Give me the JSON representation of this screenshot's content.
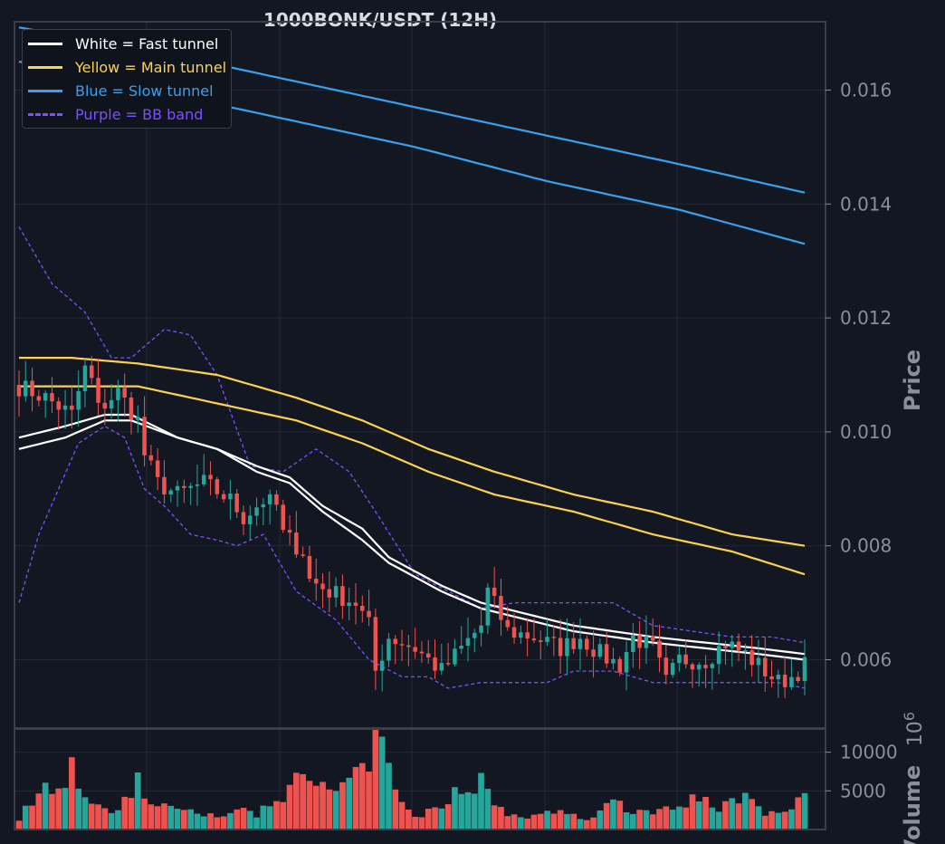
{
  "chart_data": {
    "type": "candlestick",
    "title": "1000BONK/USDT (12H)",
    "price_axis": {
      "label": "Price",
      "ylim": [
        0.0048,
        0.0172
      ],
      "ticks": [
        0.006,
        0.008,
        0.01,
        0.012,
        0.014,
        0.016
      ],
      "tick_labels": [
        "0.006",
        "0.008",
        "0.010",
        "0.012",
        "0.014",
        "0.016"
      ]
    },
    "volume_axis": {
      "label": "Volume",
      "scale_label": "10^6",
      "ylim": [
        0,
        13000
      ],
      "ticks": [
        5000,
        10000
      ],
      "tick_labels": [
        "5000",
        "10000"
      ]
    },
    "grid": true,
    "legend": {
      "placement": "top-left",
      "entries": [
        {
          "label": "White = Fast tunnel",
          "color": "#ffffff",
          "style": "solid"
        },
        {
          "label": "Yellow = Main tunnel",
          "color": "#ffd24d",
          "style": "solid"
        },
        {
          "label": "Blue = Slow tunnel",
          "color": "#3aa0f0",
          "style": "solid"
        },
        {
          "label": "Purple = BB band",
          "color": "#7e4fff",
          "style": "dashed"
        }
      ]
    },
    "colors": {
      "up": "#26a69a",
      "down": "#ef5350",
      "background": "#131722",
      "grid": "#232837",
      "text": "#8a8f9c"
    },
    "candles": {
      "count": 120,
      "close_anchors": [
        [
          0,
          0.0108
        ],
        [
          4,
          0.0106
        ],
        [
          8,
          0.0103
        ],
        [
          10,
          0.0111
        ],
        [
          11,
          0.0109
        ],
        [
          12,
          0.0104
        ],
        [
          15,
          0.0107
        ],
        [
          18,
          0.0102
        ],
        [
          19,
          0.0096
        ],
        [
          21,
          0.0091
        ],
        [
          24,
          0.0089
        ],
        [
          28,
          0.0091
        ],
        [
          32,
          0.0088
        ],
        [
          34,
          0.0085
        ],
        [
          37,
          0.0088
        ],
        [
          39,
          0.0087
        ],
        [
          40,
          0.0082
        ],
        [
          43,
          0.0079
        ],
        [
          44,
          0.0074
        ],
        [
          47,
          0.0072
        ],
        [
          51,
          0.007
        ],
        [
          53,
          0.0066
        ],
        [
          54,
          0.0058
        ],
        [
          56,
          0.0064
        ],
        [
          60,
          0.0062
        ],
        [
          64,
          0.0058
        ],
        [
          67,
          0.0062
        ],
        [
          70,
          0.0066
        ],
        [
          71,
          0.0072
        ],
        [
          74,
          0.0065
        ],
        [
          78,
          0.0064
        ],
        [
          82,
          0.0062
        ],
        [
          85,
          0.0064
        ],
        [
          88,
          0.0061
        ],
        [
          91,
          0.0059
        ],
        [
          93,
          0.0064
        ],
        [
          96,
          0.0062
        ],
        [
          98,
          0.0056
        ],
        [
          100,
          0.006
        ],
        [
          104,
          0.006
        ],
        [
          107,
          0.0063
        ],
        [
          110,
          0.0061
        ],
        [
          113,
          0.0058
        ],
        [
          115,
          0.0056
        ],
        [
          117,
          0.0057
        ],
        [
          119,
          0.0059
        ]
      ],
      "volume_anchors": [
        [
          0,
          1500
        ],
        [
          4,
          5500
        ],
        [
          8,
          7500
        ],
        [
          10,
          3500
        ],
        [
          12,
          3500
        ],
        [
          15,
          2000
        ],
        [
          18,
          6500
        ],
        [
          20,
          3000
        ],
        [
          24,
          3000
        ],
        [
          28,
          1500
        ],
        [
          32,
          2500
        ],
        [
          36,
          2000
        ],
        [
          40,
          4000
        ],
        [
          43,
          9500
        ],
        [
          45,
          5000
        ],
        [
          48,
          5000
        ],
        [
          52,
          7000
        ],
        [
          54,
          12000
        ],
        [
          55,
          10500
        ],
        [
          57,
          4500
        ],
        [
          60,
          1500
        ],
        [
          64,
          3000
        ],
        [
          66,
          5000
        ],
        [
          70,
          6500
        ],
        [
          72,
          3000
        ],
        [
          76,
          1500
        ],
        [
          80,
          2000
        ],
        [
          84,
          2500
        ],
        [
          86,
          1000
        ],
        [
          88,
          2500
        ],
        [
          90,
          5000
        ],
        [
          92,
          2000
        ],
        [
          96,
          2500
        ],
        [
          98,
          3000
        ],
        [
          100,
          3500
        ],
        [
          103,
          4000
        ],
        [
          106,
          3000
        ],
        [
          110,
          4000
        ],
        [
          113,
          2000
        ],
        [
          116,
          2000
        ],
        [
          118,
          4000
        ],
        [
          119,
          4000
        ]
      ]
    },
    "overlays": {
      "fast_tunnel": [
        {
          "name": "White = Fast tunnel",
          "anchors": [
            [
              0,
              0.0099
            ],
            [
              7,
              0.0101
            ],
            [
              13,
              0.0103
            ],
            [
              17,
              0.0103
            ],
            [
              24,
              0.0099
            ],
            [
              30,
              0.0097
            ],
            [
              36,
              0.0094
            ],
            [
              41,
              0.0092
            ],
            [
              46,
              0.0087
            ],
            [
              52,
              0.0083
            ],
            [
              56,
              0.0078
            ],
            [
              64,
              0.0073
            ],
            [
              70,
              0.007
            ],
            [
              77,
              0.0068
            ],
            [
              84,
              0.0066
            ],
            [
              90,
              0.0065
            ],
            [
              96,
              0.0064
            ],
            [
              104,
              0.0063
            ],
            [
              112,
              0.0062
            ],
            [
              119,
              0.0061
            ]
          ]
        },
        {
          "name": "White = Fast tunnel",
          "anchors": [
            [
              0,
              0.0097
            ],
            [
              7,
              0.0099
            ],
            [
              13,
              0.0102
            ],
            [
              17,
              0.0102
            ],
            [
              24,
              0.0099
            ],
            [
              30,
              0.0097
            ],
            [
              36,
              0.0093
            ],
            [
              41,
              0.0091
            ],
            [
              46,
              0.0086
            ],
            [
              52,
              0.0081
            ],
            [
              56,
              0.0077
            ],
            [
              64,
              0.0072
            ],
            [
              70,
              0.0069
            ],
            [
              77,
              0.0067
            ],
            [
              84,
              0.0065
            ],
            [
              90,
              0.0064
            ],
            [
              96,
              0.0063
            ],
            [
              104,
              0.0062
            ],
            [
              112,
              0.0061
            ],
            [
              119,
              0.006
            ]
          ]
        }
      ],
      "main_tunnel": [
        {
          "name": "Yellow = Main tunnel",
          "anchors": [
            [
              0,
              0.0113
            ],
            [
              8,
              0.0113
            ],
            [
              18,
              0.0112
            ],
            [
              30,
              0.011
            ],
            [
              42,
              0.0106
            ],
            [
              52,
              0.0102
            ],
            [
              62,
              0.0097
            ],
            [
              72,
              0.0093
            ],
            [
              84,
              0.0089
            ],
            [
              96,
              0.0086
            ],
            [
              108,
              0.0082
            ],
            [
              119,
              0.008
            ]
          ]
        },
        {
          "name": "Yellow = Main tunnel",
          "anchors": [
            [
              0,
              0.0108
            ],
            [
              8,
              0.0108
            ],
            [
              18,
              0.0108
            ],
            [
              30,
              0.0105
            ],
            [
              42,
              0.0102
            ],
            [
              52,
              0.0098
            ],
            [
              62,
              0.0093
            ],
            [
              72,
              0.0089
            ],
            [
              84,
              0.0086
            ],
            [
              96,
              0.0082
            ],
            [
              108,
              0.0079
            ],
            [
              119,
              0.0075
            ]
          ]
        }
      ],
      "slow_tunnel": [
        {
          "name": "Blue = Slow tunnel",
          "anchors": [
            [
              0,
              0.0171
            ],
            [
              20,
              0.0167
            ],
            [
              40,
              0.0162
            ],
            [
              60,
              0.0157
            ],
            [
              80,
              0.0152
            ],
            [
              100,
              0.0147
            ],
            [
              119,
              0.0142
            ]
          ]
        },
        {
          "name": "Blue = Slow tunnel",
          "anchors": [
            [
              0,
              0.0165
            ],
            [
              20,
              0.016
            ],
            [
              40,
              0.0155
            ],
            [
              60,
              0.015
            ],
            [
              80,
              0.0144
            ],
            [
              100,
              0.0139
            ],
            [
              119,
              0.0133
            ]
          ]
        }
      ],
      "bb_band": [
        {
          "name": "Purple = BB band",
          "anchors": [
            [
              0,
              0.0136
            ],
            [
              5,
              0.0126
            ],
            [
              10,
              0.0121
            ],
            [
              14,
              0.0113
            ],
            [
              17,
              0.0113
            ],
            [
              22,
              0.0118
            ],
            [
              26,
              0.0117
            ],
            [
              30,
              0.011
            ],
            [
              35,
              0.0094
            ],
            [
              40,
              0.0093
            ],
            [
              45,
              0.0097
            ],
            [
              50,
              0.0093
            ],
            [
              54,
              0.0086
            ],
            [
              60,
              0.0075
            ],
            [
              65,
              0.0072
            ],
            [
              70,
              0.0069
            ],
            [
              75,
              0.007
            ],
            [
              80,
              0.007
            ],
            [
              85,
              0.007
            ],
            [
              90,
              0.007
            ],
            [
              96,
              0.0066
            ],
            [
              102,
              0.0065
            ],
            [
              108,
              0.0064
            ],
            [
              114,
              0.0064
            ],
            [
              119,
              0.0063
            ]
          ]
        },
        {
          "name": "Purple = BB band",
          "anchors": [
            [
              0,
              0.007
            ],
            [
              3,
              0.0082
            ],
            [
              6,
              0.009
            ],
            [
              9,
              0.0098
            ],
            [
              13,
              0.0101
            ],
            [
              16,
              0.0099
            ],
            [
              19,
              0.009
            ],
            [
              22,
              0.0087
            ],
            [
              26,
              0.0082
            ],
            [
              30,
              0.0081
            ],
            [
              33,
              0.008
            ],
            [
              37,
              0.0082
            ],
            [
              42,
              0.0072
            ],
            [
              48,
              0.0067
            ],
            [
              53,
              0.006
            ],
            [
              58,
              0.0057
            ],
            [
              62,
              0.0057
            ],
            [
              65,
              0.0055
            ],
            [
              70,
              0.0056
            ],
            [
              75,
              0.0056
            ],
            [
              80,
              0.0056
            ],
            [
              84,
              0.0058
            ],
            [
              90,
              0.0058
            ],
            [
              96,
              0.0056
            ],
            [
              100,
              0.0056
            ],
            [
              108,
              0.0056
            ],
            [
              115,
              0.0056
            ],
            [
              119,
              0.0055
            ]
          ]
        }
      ]
    }
  }
}
